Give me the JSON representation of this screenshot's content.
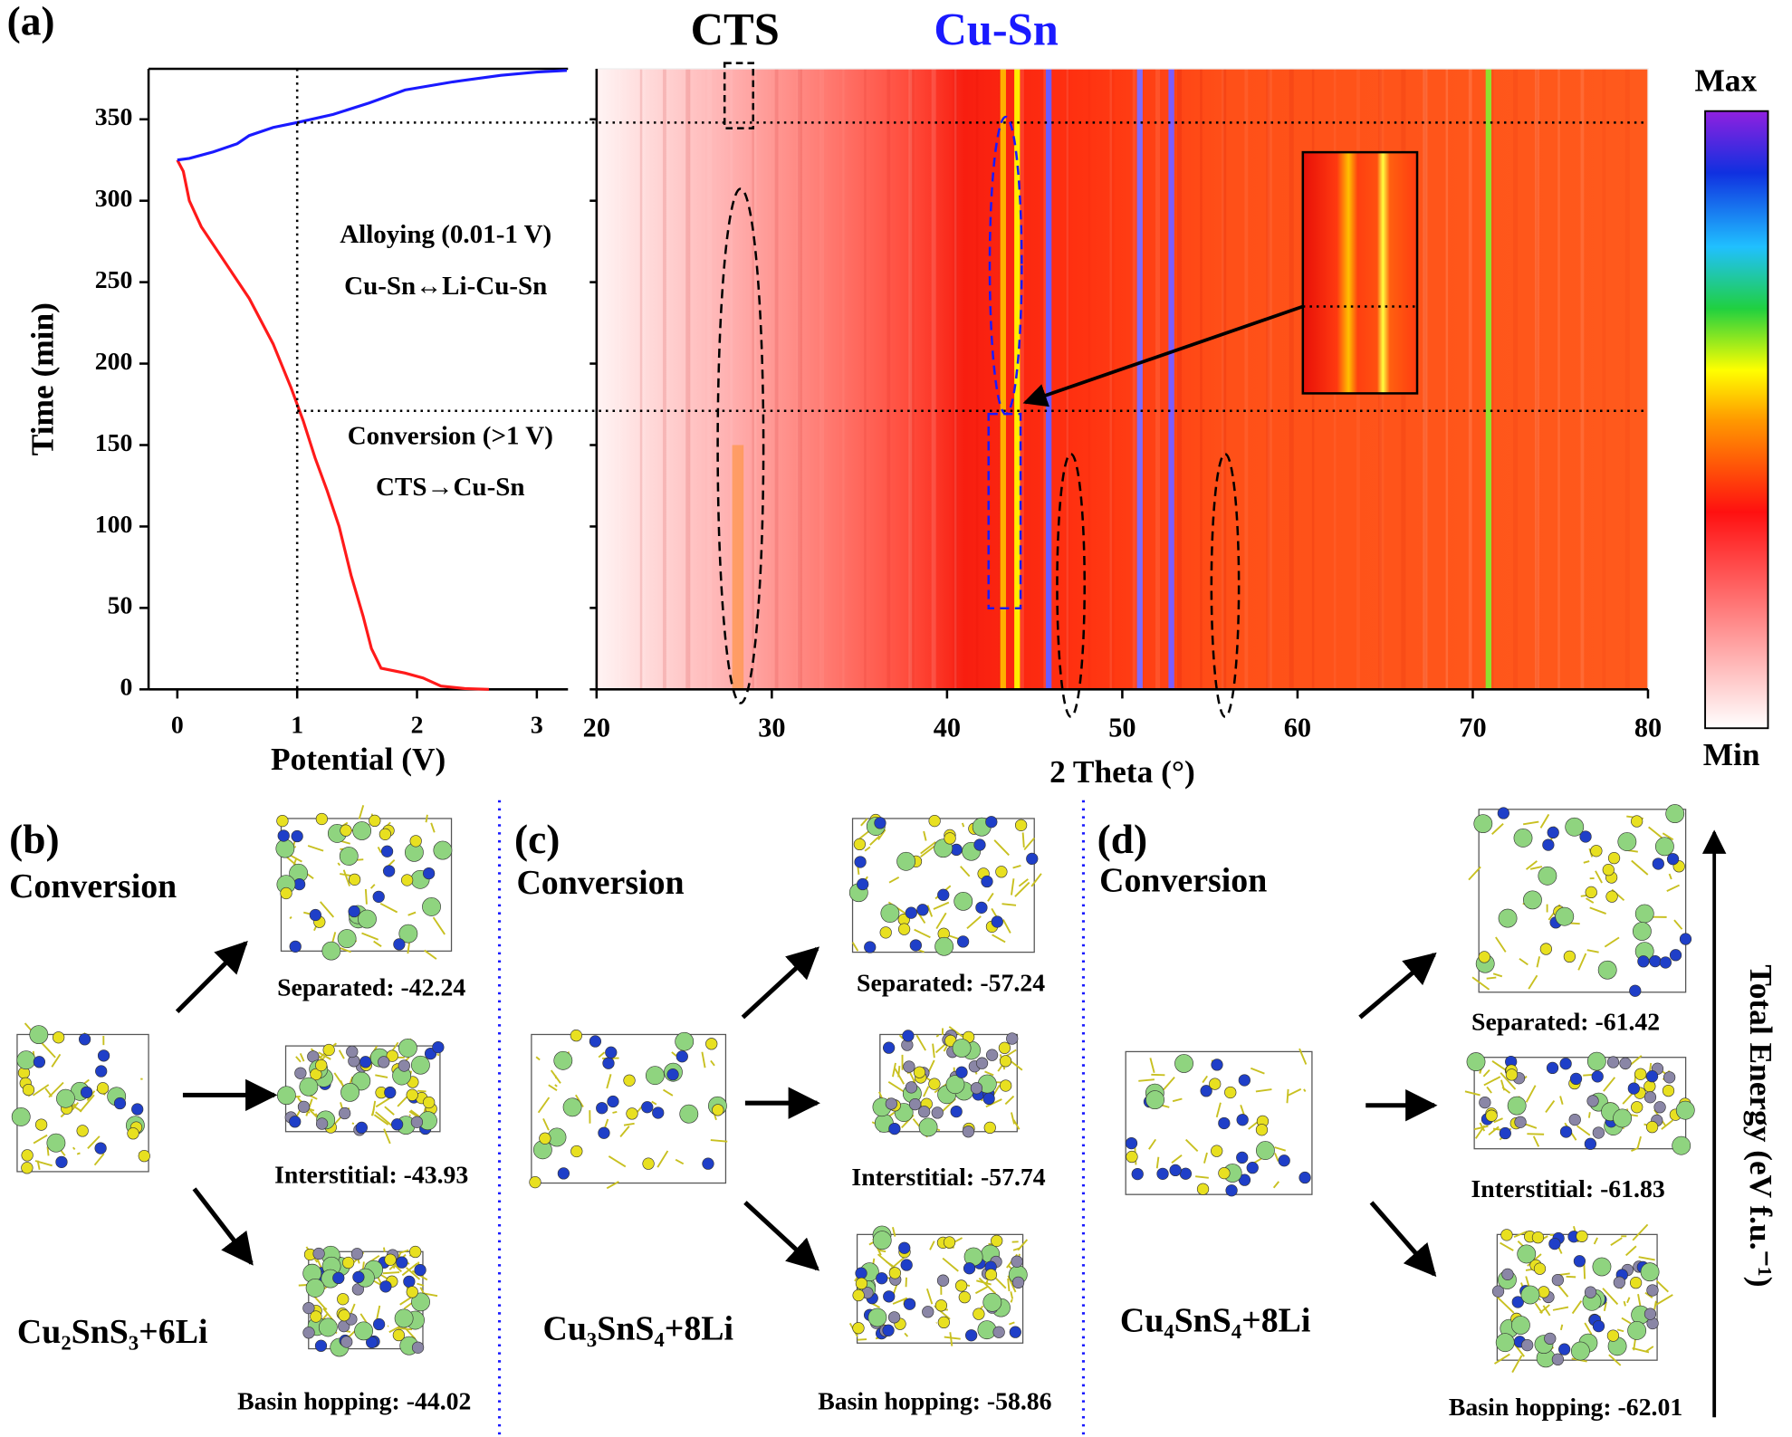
{
  "chart_data": [
    {
      "type": "line",
      "panel_label": "(a)",
      "xlabel": "Potential (V)",
      "ylabel": "Time (min)",
      "xlim": [
        -0.24,
        3.26
      ],
      "xticks": [
        0,
        1,
        2,
        3
      ],
      "ylim": [
        0,
        381
      ],
      "yticks": [
        0,
        50,
        100,
        150,
        200,
        250,
        300,
        350
      ],
      "vline": 1,
      "hlines": [
        348,
        171
      ],
      "annotations": [
        "Alloying (0.01-1 V)",
        "Cu-Sn↔Li-Cu-Sn",
        "Conversion (>1 V)",
        "CTS→Cu-Sn"
      ],
      "series": [
        {
          "color": "#ff1a1a",
          "x": [
            0,
            0.05,
            0.1,
            0.2,
            0.4,
            0.6,
            0.8,
            0.95,
            1.05,
            1.15,
            1.25,
            1.35,
            1.45,
            1.55,
            1.62,
            1.7,
            1.9,
            2.05,
            2.2,
            2.4,
            2.6
          ],
          "values": [
            325,
            318,
            300,
            284,
            262,
            240,
            212,
            185,
            165,
            142,
            122,
            100,
            70,
            45,
            25,
            13,
            10,
            7,
            2,
            0.5,
            0
          ]
        },
        {
          "color": "#1a1aff",
          "x": [
            0,
            0.1,
            0.3,
            0.5,
            0.6,
            0.8,
            1.0,
            1.3,
            1.6,
            1.9,
            2.3,
            2.7,
            3.0,
            3.25
          ],
          "values": [
            325,
            326,
            330,
            335,
            340,
            345,
            348,
            353,
            360,
            368,
            373,
            377,
            379,
            380
          ]
        }
      ]
    },
    {
      "type": "heatmap",
      "xlabel": "2 Theta (°)",
      "xlim": [
        20,
        80
      ],
      "xticks": [
        20,
        30,
        40,
        50,
        60,
        70,
        80
      ],
      "ylim": [
        0,
        381
      ],
      "peak_labels": [
        "CTS",
        "Cu-Sn"
      ],
      "peaks": [
        {
          "x": 43.2,
          "color": "#ffb000"
        },
        {
          "x": 44.0,
          "color": "#ffee00"
        },
        {
          "x": 45.8,
          "color": "#6a5cff"
        },
        {
          "x": 51.0,
          "color": "#7c6cff"
        },
        {
          "x": 52.8,
          "color": "#7a5cff"
        },
        {
          "x": 70.9,
          "color": "#8fe030"
        }
      ],
      "colorbar": {
        "max_label": "Max",
        "min_label": "Min"
      }
    }
  ],
  "panels": [
    {
      "label": "(b)",
      "heading": "Conversion",
      "formula": "Cu₂SnS₃+6Li",
      "structures": [
        "Separated: -42.24",
        "Interstitial: -43.93",
        "Basin hopping: -44.02"
      ]
    },
    {
      "label": "(c)",
      "heading": "Conversion",
      "formula": "Cu₃SnS₄+8Li",
      "structures": [
        "Separated: -57.24",
        "Interstitial: -57.74",
        "Basin hopping: -58.86"
      ]
    },
    {
      "label": "(d)",
      "heading": "Conversion",
      "formula": "Cu₄SnS₄+8Li",
      "structures": [
        "Separated: -61.42",
        "Interstitial: -61.83",
        "Basin hopping: -62.01"
      ]
    }
  ],
  "energy_axis_label": "Total Energy (eV f.u.⁻¹)"
}
